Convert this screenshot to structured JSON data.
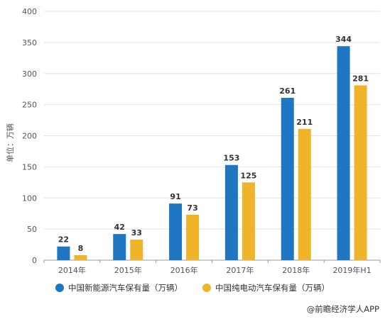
{
  "chart_data": {
    "type": "bar",
    "categories": [
      "2014年",
      "2015年",
      "2016年",
      "2017年",
      "2018年",
      "2019年H1"
    ],
    "series": [
      {
        "name": "中国新能源汽车保有量（万辆）",
        "values": [
          22,
          42,
          91,
          153,
          261,
          344
        ],
        "color": "#1f77c4"
      },
      {
        "name": "中国纯电动汽车保有量（万辆）",
        "values": [
          8,
          33,
          73,
          125,
          211,
          281
        ],
        "color": "#f0b42a"
      }
    ],
    "ylabel": "单位：万辆",
    "ylim": [
      0,
      400
    ],
    "yticks": [
      0,
      50,
      100,
      150,
      200,
      250,
      300,
      350,
      400
    ],
    "grid": true,
    "legend_position": "bottom"
  },
  "source": "@前瞻经济学人APP"
}
